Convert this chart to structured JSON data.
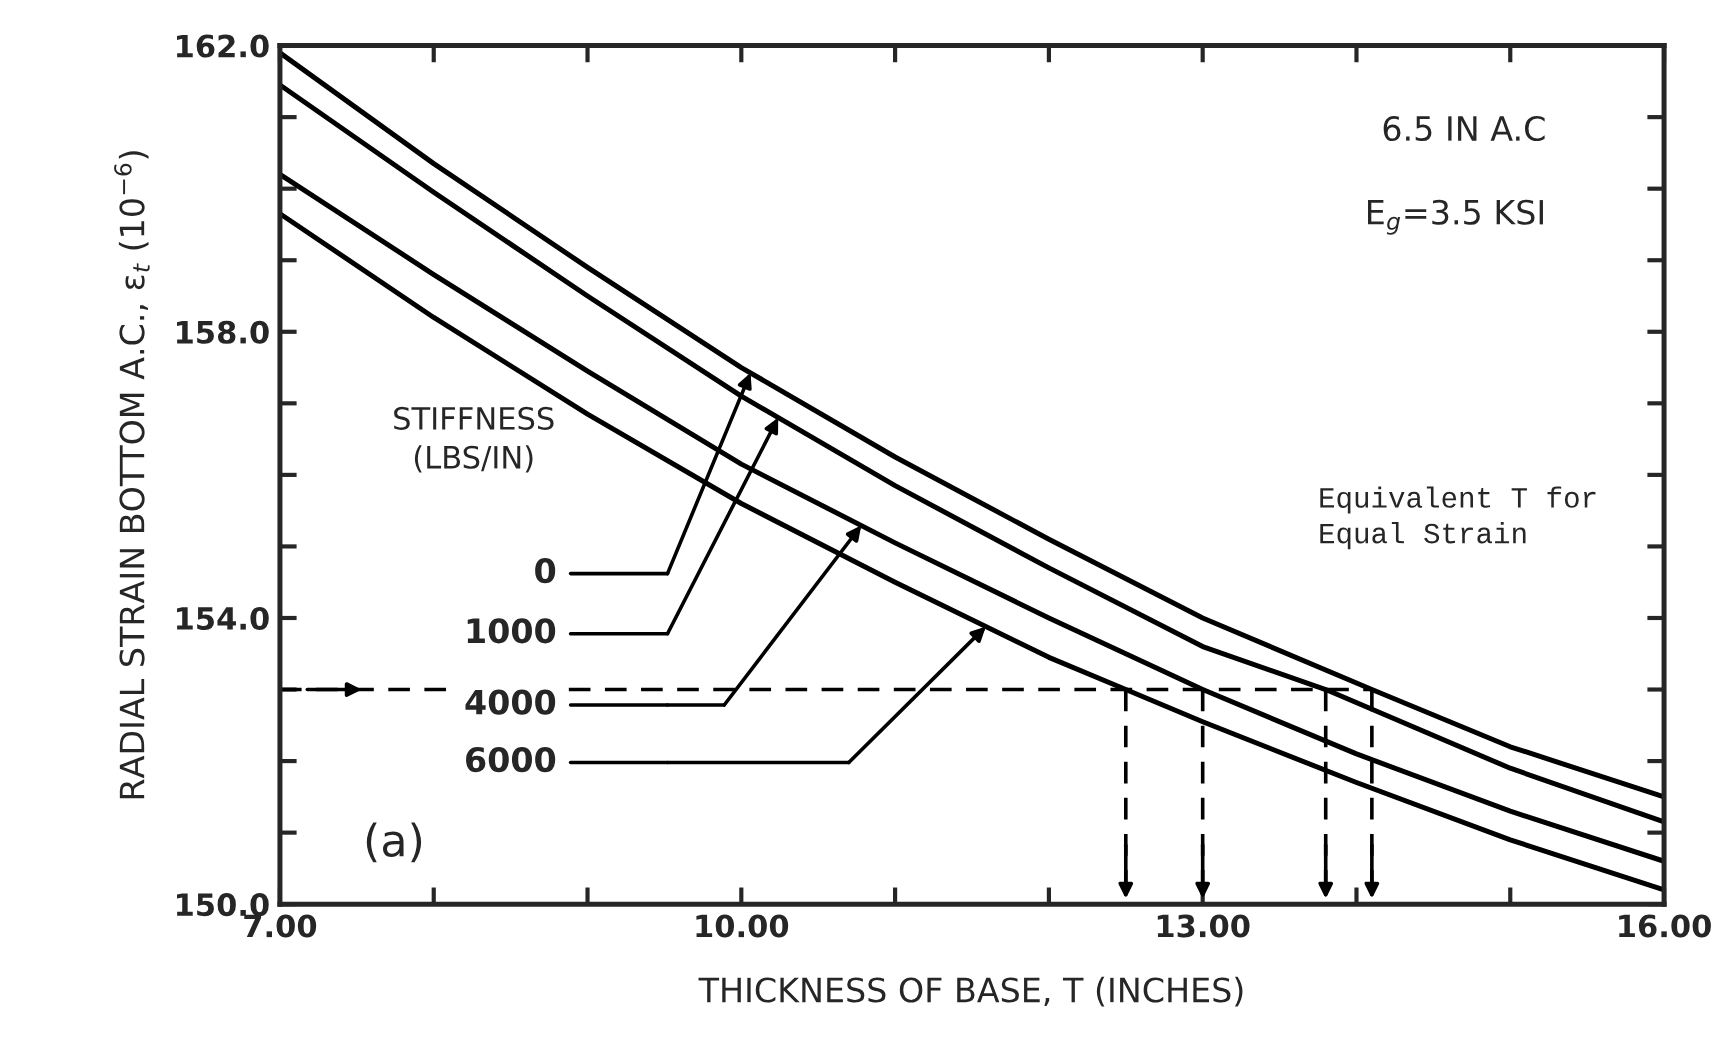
{
  "chart_data": {
    "type": "line",
    "xlabel": "THICKNESS OF BASE, T (INCHES)",
    "ylabel": "RADIAL STRAIN BOTTOM A.C., ε$_{t}$ (10$^{−6}$)",
    "xlim": [
      7,
      16
    ],
    "ylim": [
      150,
      162
    ],
    "xticks": [
      {
        "value": 7,
        "label": "7.00"
      },
      {
        "value": 8,
        "label": null
      },
      {
        "value": 9,
        "label": null
      },
      {
        "value": 10,
        "label": "10.00"
      },
      {
        "value": 11,
        "label": null
      },
      {
        "value": 12,
        "label": null
      },
      {
        "value": 13,
        "label": "13.00"
      },
      {
        "value": 14,
        "label": null
      },
      {
        "value": 15,
        "label": null
      },
      {
        "value": 16,
        "label": "16.00"
      }
    ],
    "yticks": [
      {
        "value": 150,
        "label": "150.0"
      },
      {
        "value": 151,
        "label": null
      },
      {
        "value": 152,
        "label": null
      },
      {
        "value": 153,
        "label": null
      },
      {
        "value": 154,
        "label": "154.0"
      },
      {
        "value": 155,
        "label": null
      },
      {
        "value": 156,
        "label": null
      },
      {
        "value": 157,
        "label": null
      },
      {
        "value": 158,
        "label": "158.0"
      },
      {
        "value": 159,
        "label": null
      },
      {
        "value": 160,
        "label": null
      },
      {
        "value": 161,
        "label": null
      },
      {
        "value": 162,
        "label": "162.0"
      }
    ],
    "series": [
      {
        "name": "0",
        "color": "#000000",
        "x": [
          7,
          8,
          9,
          10,
          11,
          12,
          13,
          14.1,
          15,
          16
        ],
        "values": [
          161.9,
          160.35,
          158.9,
          157.5,
          156.25,
          155.1,
          154.0,
          153.0,
          152.2,
          151.5
        ]
      },
      {
        "name": "1000",
        "color": "#000000",
        "x": [
          7,
          8,
          9,
          10,
          11,
          12,
          13,
          13.8,
          15,
          16
        ],
        "values": [
          161.45,
          159.95,
          158.5,
          157.1,
          155.85,
          154.7,
          153.6,
          153.0,
          151.9,
          151.15
        ]
      },
      {
        "name": "4000",
        "color": "#000000",
        "x": [
          7,
          8,
          9,
          10,
          11,
          12,
          13,
          14,
          15,
          16
        ],
        "values": [
          160.2,
          158.8,
          157.45,
          156.15,
          155.05,
          154.0,
          153.0,
          152.1,
          151.3,
          150.6
        ]
      },
      {
        "name": "6000",
        "color": "#000000",
        "x": [
          7,
          8,
          9,
          10,
          11,
          12,
          12.5,
          13,
          14,
          15,
          16
        ],
        "values": [
          159.65,
          158.2,
          156.85,
          155.6,
          154.5,
          153.45,
          153.0,
          152.55,
          151.7,
          150.9,
          150.2
        ]
      }
    ],
    "ref_lines": [
      {
        "axis": "y",
        "value": 153,
        "line_style": "dashed",
        "color": "#000000"
      },
      {
        "axis": "x",
        "value": 12.5,
        "line_style": "dashed",
        "color": "#000000"
      },
      {
        "axis": "x",
        "value": 13.0,
        "line_style": "dashed",
        "color": "#000000"
      },
      {
        "axis": "x",
        "value": 13.8,
        "line_style": "dashed",
        "color": "#000000"
      },
      {
        "axis": "x",
        "value": 14.1,
        "line_style": "dashed",
        "color": "#000000"
      }
    ],
    "annotations": [
      "6.5 IN A.C",
      "E$_{g}$=3.5 KSI",
      "STIFFNESS\n(LBS/IN)",
      "Equivalent T for\nEqual Strain",
      "(a)"
    ],
    "legend": "left",
    "grid": false,
    "marker": "none",
    "line_style": "solid"
  }
}
